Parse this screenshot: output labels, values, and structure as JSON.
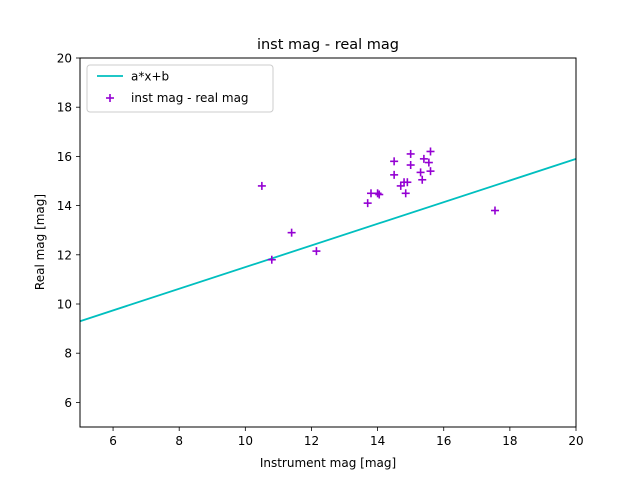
{
  "chart_data": {
    "type": "scatter",
    "title": "inst mag - real mag",
    "xlabel": "Instrument mag [mag]",
    "ylabel": "Real mag [mag]",
    "xlim": [
      5,
      20
    ],
    "ylim": [
      5,
      20
    ],
    "xticks": [
      6,
      8,
      10,
      12,
      14,
      16,
      18,
      20
    ],
    "yticks": [
      6,
      8,
      10,
      12,
      14,
      16,
      18,
      20
    ],
    "grid": false,
    "legend_position": "upper-left",
    "series": [
      {
        "name": "a*x+b",
        "kind": "line",
        "color": "#00bfbf",
        "x": [
          5,
          20
        ],
        "y": [
          9.3,
          15.9
        ]
      },
      {
        "name": "inst mag - real mag",
        "kind": "scatter",
        "marker": "plus",
        "color": "#9400d3",
        "x": [
          10.5,
          10.8,
          11.4,
          12.15,
          13.7,
          13.8,
          14.0,
          14.05,
          14.5,
          14.5,
          14.7,
          14.8,
          14.85,
          14.9,
          15.0,
          15.0,
          15.3,
          15.35,
          15.4,
          15.55,
          15.6,
          15.6,
          17.55
        ],
        "y": [
          14.8,
          11.8,
          12.9,
          12.15,
          14.1,
          14.5,
          14.5,
          14.45,
          15.8,
          15.25,
          14.8,
          14.95,
          14.5,
          14.95,
          16.1,
          15.65,
          15.35,
          15.05,
          15.9,
          15.75,
          16.2,
          15.4,
          13.8
        ]
      }
    ]
  }
}
